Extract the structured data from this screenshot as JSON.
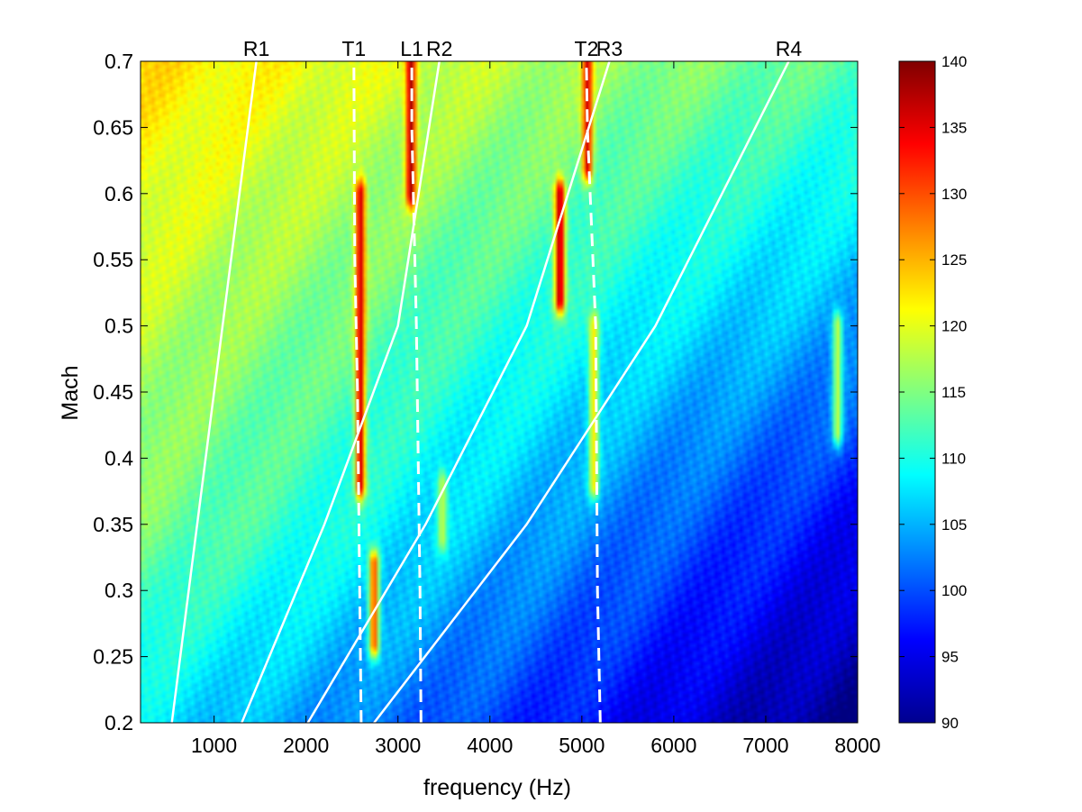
{
  "chart_data": {
    "type": "heatmap",
    "title": "",
    "xlabel": "frequency   (Hz)",
    "ylabel": "Mach",
    "xlim": [
      200,
      8000
    ],
    "ylim": [
      0.2,
      0.7
    ],
    "xticks": [
      1000,
      2000,
      3000,
      4000,
      5000,
      6000,
      7000,
      8000
    ],
    "yticks": [
      0.2,
      0.25,
      0.3,
      0.35,
      0.4,
      0.45,
      0.5,
      0.55,
      0.6,
      0.65,
      0.7
    ],
    "colorbar": {
      "range": [
        90,
        140
      ],
      "ticks": [
        90,
        95,
        100,
        105,
        110,
        115,
        120,
        125,
        130,
        135,
        140
      ],
      "colormap": "jet",
      "colors": [
        "#00008f",
        "#0000ff",
        "#0080ff",
        "#00ffff",
        "#80ff80",
        "#ffff00",
        "#ff8000",
        "#ff0000",
        "#800000"
      ]
    },
    "curves": [
      {
        "name": "R1",
        "style": "solid",
        "points": [
          [
            540,
            0.2
          ],
          [
            1460,
            0.7
          ]
        ]
      },
      {
        "name": "R2",
        "style": "solid",
        "points": [
          [
            1300,
            0.2
          ],
          [
            2200,
            0.35
          ],
          [
            3000,
            0.5
          ],
          [
            3450,
            0.7
          ]
        ]
      },
      {
        "name": "R3",
        "style": "solid",
        "points": [
          [
            2020,
            0.2
          ],
          [
            3300,
            0.35
          ],
          [
            4400,
            0.5
          ],
          [
            5300,
            0.7
          ]
        ]
      },
      {
        "name": "R4",
        "style": "solid",
        "points": [
          [
            2740,
            0.2
          ],
          [
            4400,
            0.35
          ],
          [
            5800,
            0.5
          ],
          [
            7250,
            0.7
          ]
        ]
      },
      {
        "name": "T1",
        "style": "dashed",
        "points": [
          [
            2600,
            0.2
          ],
          [
            2560,
            0.45
          ],
          [
            2530,
            0.55
          ],
          [
            2520,
            0.7
          ]
        ]
      },
      {
        "name": "L1",
        "style": "dashed",
        "points": [
          [
            3250,
            0.2
          ],
          [
            3240,
            0.3
          ],
          [
            3200,
            0.5
          ],
          [
            3150,
            0.65
          ],
          [
            3150,
            0.7
          ]
        ]
      },
      {
        "name": "T2",
        "style": "dashed",
        "points": [
          [
            5200,
            0.2
          ],
          [
            5170,
            0.3
          ],
          [
            5150,
            0.5
          ],
          [
            5060,
            0.65
          ],
          [
            5050,
            0.7
          ]
        ]
      }
    ],
    "field": {
      "background_gradient": [
        {
          "mach": 0.7,
          "db_left": 123,
          "db_right": 113
        },
        {
          "mach": 0.5,
          "db_left": 118,
          "db_right": 104
        },
        {
          "mach": 0.35,
          "db_left": 115,
          "db_right": 96
        },
        {
          "mach": 0.2,
          "db_left": 108,
          "db_right": 90
        }
      ],
      "peaks": [
        {
          "f": 2590,
          "m0": 0.38,
          "m1": 0.6,
          "db": 136
        },
        {
          "f": 3140,
          "m0": 0.6,
          "m1": 0.7,
          "db": 138
        },
        {
          "f": 4760,
          "m0": 0.52,
          "m1": 0.6,
          "db": 138
        },
        {
          "f": 5060,
          "m0": 0.62,
          "m1": 0.7,
          "db": 136
        },
        {
          "f": 2740,
          "m0": 0.26,
          "m1": 0.32,
          "db": 130
        },
        {
          "f": 5130,
          "m0": 0.38,
          "m1": 0.5,
          "db": 122
        },
        {
          "f": 7780,
          "m0": 0.42,
          "m1": 0.5,
          "db": 118
        },
        {
          "f": 3480,
          "m0": 0.34,
          "m1": 0.38,
          "db": 118
        }
      ]
    }
  }
}
